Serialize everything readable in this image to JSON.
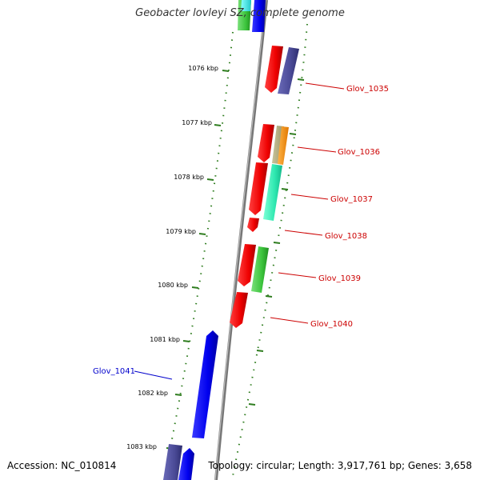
{
  "title": "Geobacter lovleyi SZ, complete genome",
  "footer": {
    "accession": "Accession: NC_010814",
    "summary": "Topology: circular; Length: 3,917,761 bp; Genes: 3,658"
  },
  "colors": {
    "backbone": "#888888",
    "tick": "#2f7d1f",
    "forward_label": "#cc0000",
    "reverse_label": "#0000cc"
  },
  "scale_ticks": [
    "1076 kbp",
    "1077 kbp",
    "1078 kbp",
    "1079 kbp",
    "1080 kbp",
    "1081 kbp",
    "1082 kbp",
    "1083 kbp"
  ],
  "gene_labels": [
    {
      "text": "Glov_1035",
      "strand": "forward"
    },
    {
      "text": "Glov_1036",
      "strand": "forward"
    },
    {
      "text": "Glov_1037",
      "strand": "forward"
    },
    {
      "text": "Glov_1038",
      "strand": "forward"
    },
    {
      "text": "Glov_1039",
      "strand": "forward"
    },
    {
      "text": "Glov_1040",
      "strand": "forward"
    },
    {
      "text": "Glov_1041",
      "strand": "reverse"
    }
  ]
}
